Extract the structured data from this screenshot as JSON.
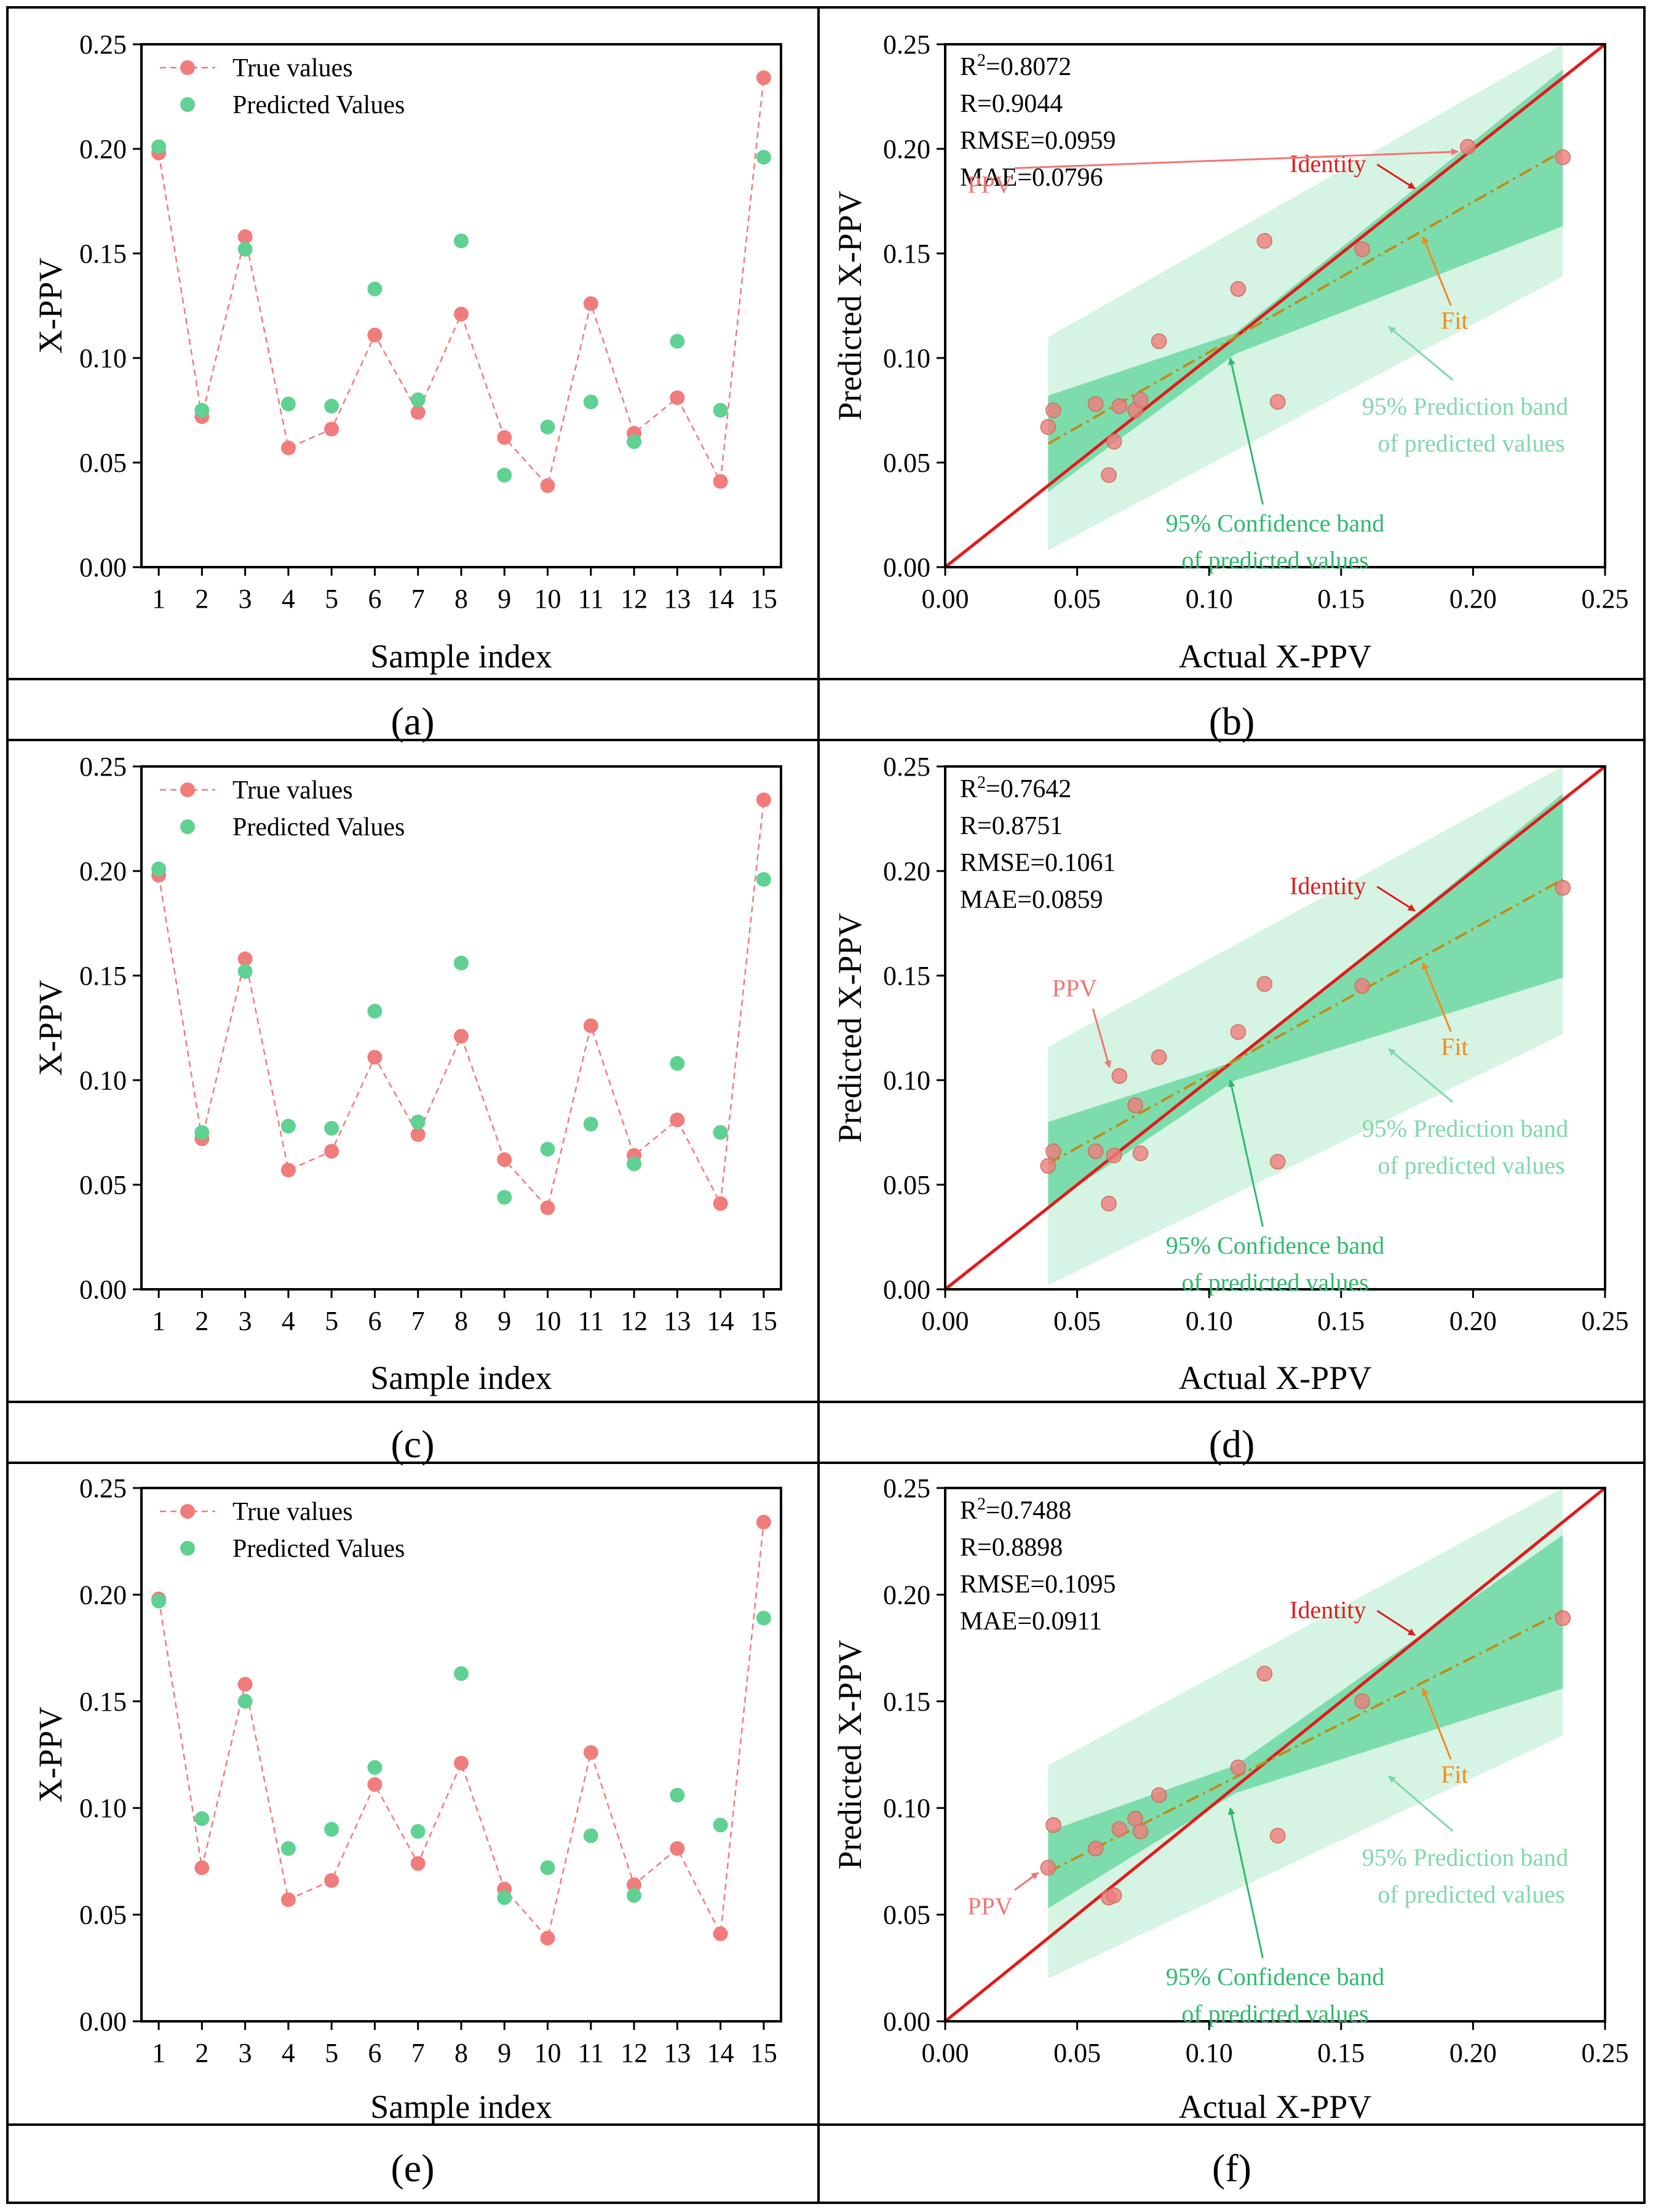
{
  "colors": {
    "true": "#f07c7c",
    "predicted": "#5fd193",
    "identity": "#e11b1b",
    "fit": "#c08c18",
    "fit_annot": "#f28a1c",
    "confidence": "#5fd49a",
    "prediction": "#d6f4e3",
    "prediction_text": "#7ed9aa",
    "confidence_text": "#2fba6d",
    "ppv_annot": "#f27575",
    "frame": "#000000"
  },
  "chart_data": [
    {
      "panel": "(a)",
      "type": "scatter",
      "xlabel": "Sample index",
      "ylabel": "X-PPV",
      "xlim": [
        0.6,
        15.4
      ],
      "ylim": [
        0,
        0.25
      ],
      "xticks": [
        "1",
        "2",
        "3",
        "4",
        "5",
        "6",
        "7",
        "8",
        "9",
        "10",
        "11",
        "12",
        "13",
        "14",
        "15"
      ],
      "yticks": [
        "0.00",
        "0.05",
        "0.10",
        "0.15",
        "0.20",
        "0.25"
      ],
      "legend": {
        "true": "True values",
        "predicted": "Predicted Values"
      },
      "x": [
        1,
        2,
        3,
        4,
        5,
        6,
        7,
        8,
        9,
        10,
        11,
        12,
        13,
        14,
        15
      ],
      "series": [
        {
          "name": "True values",
          "values": [
            0.198,
            0.072,
            0.158,
            0.057,
            0.066,
            0.111,
            0.074,
            0.121,
            0.062,
            0.039,
            0.126,
            0.064,
            0.081,
            0.041,
            0.234
          ]
        },
        {
          "name": "Predicted Values",
          "values": [
            0.201,
            0.075,
            0.152,
            0.078,
            0.077,
            0.133,
            0.08,
            0.156,
            0.044,
            0.067,
            0.079,
            0.06,
            0.108,
            0.075,
            0.196
          ]
        }
      ]
    },
    {
      "panel": "(b)",
      "type": "scatter",
      "xlabel": "Actual X-PPV",
      "ylabel": "Predicted X-PPV",
      "xlim": [
        0,
        0.25
      ],
      "ylim": [
        0,
        0.25
      ],
      "xticks": [
        "0.00",
        "0.05",
        "0.10",
        "0.15",
        "0.20",
        "0.25"
      ],
      "yticks": [
        "0.00",
        "0.05",
        "0.10",
        "0.15",
        "0.20",
        "0.25"
      ],
      "stats": {
        "r2_label": "R",
        "r2_value": "=0.8072",
        "r": "R=0.9044",
        "rmse": "RMSE=0.0959",
        "mae": "MAE=0.0796"
      },
      "points": {
        "x": [
          0.198,
          0.072,
          0.158,
          0.057,
          0.066,
          0.111,
          0.074,
          0.121,
          0.062,
          0.039,
          0.126,
          0.064,
          0.081,
          0.041,
          0.234
        ],
        "y": [
          0.201,
          0.075,
          0.152,
          0.078,
          0.077,
          0.133,
          0.08,
          0.156,
          0.044,
          0.067,
          0.079,
          0.06,
          0.108,
          0.075,
          0.196
        ]
      },
      "fit": {
        "x": [
          0.039,
          0.234
        ],
        "y": [
          0.059,
          0.199
        ]
      },
      "confidence_band": {
        "x": [
          0.039,
          0.11,
          0.234
        ],
        "upper": [
          0.082,
          0.112,
          0.238
        ],
        "lower": [
          0.036,
          0.102,
          0.163
        ]
      },
      "prediction_band": {
        "x": [
          0.039,
          0.234
        ],
        "upper": [
          0.11,
          0.25
        ],
        "lower": [
          0.008,
          0.139
        ]
      },
      "annotations": {
        "identity": "Identity",
        "fit": "Fit",
        "ppv": "PPV",
        "prediction_band": [
          "95% Prediction band",
          "of predicted values"
        ],
        "confidence_band": [
          "95% Confidence band",
          "of predicted values"
        ]
      }
    },
    {
      "panel": "(c)",
      "type": "scatter",
      "xlabel": "Sample index",
      "ylabel": "X-PPV",
      "xlim": [
        0.6,
        15.4
      ],
      "ylim": [
        0,
        0.25
      ],
      "xticks": [
        "1",
        "2",
        "3",
        "4",
        "5",
        "6",
        "7",
        "8",
        "9",
        "10",
        "11",
        "12",
        "13",
        "14",
        "15"
      ],
      "yticks": [
        "0.00",
        "0.05",
        "0.10",
        "0.15",
        "0.20",
        "0.25"
      ],
      "legend": {
        "true": "True values",
        "predicted": "Predicted Values"
      },
      "x": [
        1,
        2,
        3,
        4,
        5,
        6,
        7,
        8,
        9,
        10,
        11,
        12,
        13,
        14,
        15
      ],
      "series": [
        {
          "name": "True values",
          "values": [
            0.198,
            0.072,
            0.158,
            0.057,
            0.066,
            0.111,
            0.074,
            0.121,
            0.062,
            0.039,
            0.126,
            0.064,
            0.081,
            0.041,
            0.234
          ]
        },
        {
          "name": "Predicted Values",
          "values": [
            0.201,
            0.075,
            0.152,
            0.078,
            0.077,
            0.133,
            0.08,
            0.156,
            0.044,
            0.067,
            0.079,
            0.06,
            0.108,
            0.075,
            0.196
          ]
        }
      ]
    },
    {
      "panel": "(d)",
      "type": "scatter",
      "xlabel": "Actual X-PPV",
      "ylabel": "Predicted X-PPV",
      "xlim": [
        0,
        0.25
      ],
      "ylim": [
        0,
        0.25
      ],
      "xticks": [
        "0.00",
        "0.05",
        "0.10",
        "0.15",
        "0.20",
        "0.25"
      ],
      "yticks": [
        "0.00",
        "0.05",
        "0.10",
        "0.15",
        "0.20",
        "0.25"
      ],
      "stats": {
        "r2_label": "R",
        "r2_value": "=0.7642",
        "r": "R=0.8751",
        "rmse": "RMSE=0.1061",
        "mae": "MAE=0.0859"
      },
      "points": {
        "x": [
          0.039,
          0.041,
          0.057,
          0.062,
          0.064,
          0.066,
          0.072,
          0.074,
          0.081,
          0.111,
          0.121,
          0.126,
          0.158,
          0.234
        ],
        "y": [
          0.059,
          0.066,
          0.066,
          0.041,
          0.064,
          0.102,
          0.088,
          0.065,
          0.111,
          0.123,
          0.146,
          0.061,
          0.145,
          0.192
        ]
      },
      "fit": {
        "x": [
          0.039,
          0.234
        ],
        "y": [
          0.06,
          0.196
        ]
      },
      "confidence_band": {
        "x": [
          0.039,
          0.11,
          0.234
        ],
        "upper": [
          0.08,
          0.109,
          0.237
        ],
        "lower": [
          0.04,
          0.1,
          0.149
        ]
      },
      "prediction_band": {
        "x": [
          0.039,
          0.234
        ],
        "upper": [
          0.116,
          0.25
        ],
        "lower": [
          0.002,
          0.122
        ]
      },
      "annotations": {
        "identity": "Identity",
        "fit": "Fit",
        "ppv": "PPV",
        "prediction_band": [
          "95% Prediction band",
          "of predicted values"
        ],
        "confidence_band": [
          "95% Confidence band",
          "of predicted values"
        ]
      }
    },
    {
      "panel": "(e)",
      "type": "scatter",
      "xlabel": "Sample index",
      "ylabel": "X-PPV",
      "xlim": [
        0.6,
        15.4
      ],
      "ylim": [
        0,
        0.25
      ],
      "xticks": [
        "1",
        "2",
        "3",
        "4",
        "5",
        "6",
        "7",
        "8",
        "9",
        "10",
        "11",
        "12",
        "13",
        "14",
        "15"
      ],
      "yticks": [
        "0.00",
        "0.05",
        "0.10",
        "0.15",
        "0.20",
        "0.25"
      ],
      "legend": {
        "true": "True values",
        "predicted": "Predicted Values"
      },
      "x": [
        1,
        2,
        3,
        4,
        5,
        6,
        7,
        8,
        9,
        10,
        11,
        12,
        13,
        14,
        15
      ],
      "series": [
        {
          "name": "True values",
          "values": [
            0.198,
            0.072,
            0.158,
            0.057,
            0.066,
            0.111,
            0.074,
            0.121,
            0.062,
            0.039,
            0.126,
            0.064,
            0.081,
            0.041,
            0.234
          ]
        },
        {
          "name": "Predicted Values",
          "values": [
            0.197,
            0.095,
            0.15,
            0.081,
            0.09,
            0.119,
            0.089,
            0.163,
            0.058,
            0.072,
            0.087,
            0.059,
            0.106,
            0.092,
            0.189
          ]
        }
      ]
    },
    {
      "panel": "(f)",
      "type": "scatter",
      "xlabel": "Actual X-PPV",
      "ylabel": "Predicted X-PPV",
      "xlim": [
        0,
        0.25
      ],
      "ylim": [
        0,
        0.25
      ],
      "xticks": [
        "0.00",
        "0.05",
        "0.10",
        "0.15",
        "0.20",
        "0.25"
      ],
      "yticks": [
        "0.00",
        "0.05",
        "0.10",
        "0.15",
        "0.20",
        "0.25"
      ],
      "stats": {
        "r2_label": "R",
        "r2_value": "=0.7488",
        "r": "R=0.8898",
        "rmse": "RMSE=0.1095",
        "mae": "MAE=0.0911"
      },
      "points": {
        "x": [
          0.039,
          0.041,
          0.057,
          0.062,
          0.064,
          0.066,
          0.072,
          0.074,
          0.081,
          0.111,
          0.121,
          0.126,
          0.158,
          0.234
        ],
        "y": [
          0.072,
          0.092,
          0.081,
          0.058,
          0.059,
          0.09,
          0.095,
          0.089,
          0.106,
          0.119,
          0.163,
          0.087,
          0.15,
          0.189
        ]
      },
      "fit": {
        "x": [
          0.039,
          0.234
        ],
        "y": [
          0.07,
          0.192
        ]
      },
      "confidence_band": {
        "x": [
          0.039,
          0.11,
          0.234
        ],
        "upper": [
          0.089,
          0.12,
          0.228
        ],
        "lower": [
          0.053,
          0.107,
          0.156
        ]
      },
      "prediction_band": {
        "x": [
          0.039,
          0.234
        ],
        "upper": [
          0.12,
          0.25
        ],
        "lower": [
          0.02,
          0.134
        ]
      },
      "annotations": {
        "identity": "Identity",
        "fit": "Fit",
        "ppv": "PPV",
        "prediction_band": [
          "95% Prediction band",
          "of predicted values"
        ],
        "confidence_band": [
          "95% Confidence band",
          "of predicted values"
        ]
      }
    }
  ]
}
